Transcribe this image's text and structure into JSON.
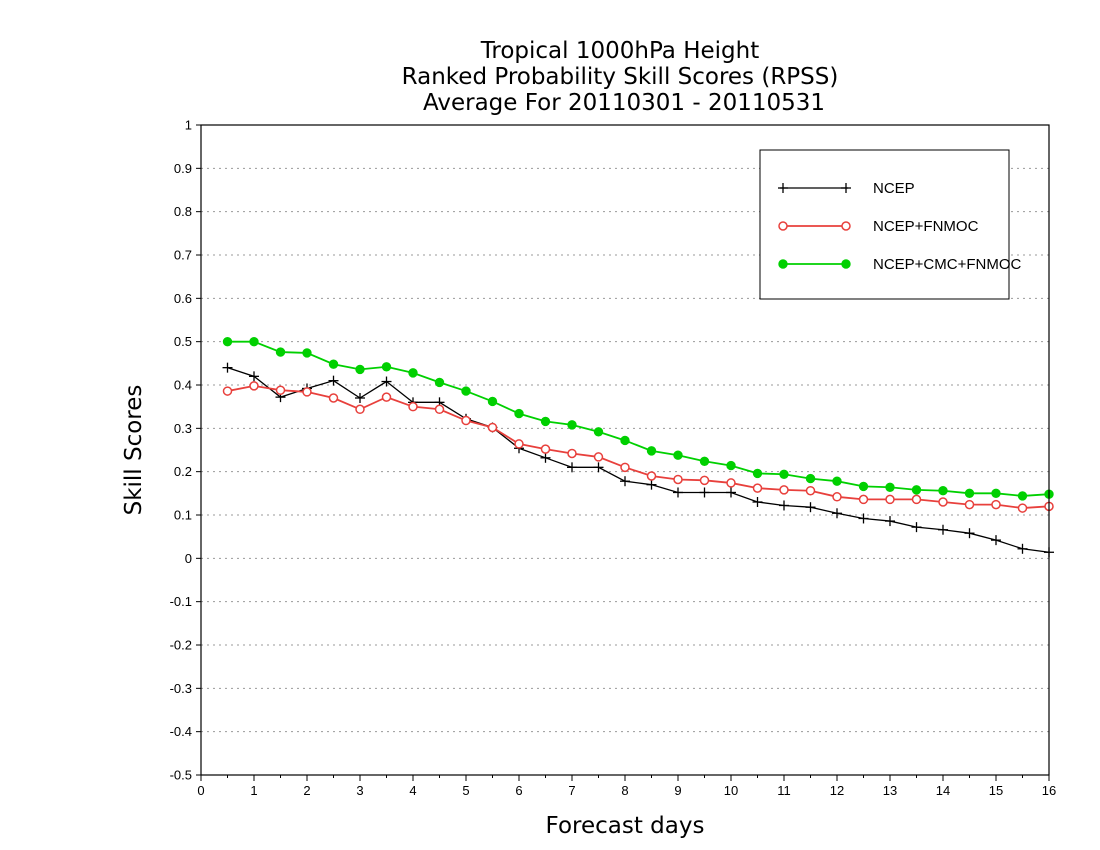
{
  "chart_data": {
    "type": "line",
    "title": [
      "Tropical 1000hPa Height",
      "Ranked Probability Skill Scores (RPSS)",
      "Average For 20110301 - 20110531"
    ],
    "xlabel": "Forecast days",
    "ylabel": "Skill Scores",
    "xlim": [
      0,
      16
    ],
    "ylim": [
      -0.5,
      1
    ],
    "xticks": [
      "0",
      "1",
      "2",
      "3",
      "4",
      "5",
      "6",
      "7",
      "8",
      "9",
      "10",
      "11",
      "12",
      "13",
      "14",
      "15",
      "16"
    ],
    "yticks": [
      "-0.5",
      "-0.4",
      "-0.3",
      "-0.2",
      "-0.1",
      "0",
      "0.1",
      "0.2",
      "0.3",
      "0.4",
      "0.5",
      "0.6",
      "0.7",
      "0.8",
      "0.9",
      "1"
    ],
    "grid": "horizontal dotted",
    "legend_position": "top-right",
    "x": [
      0.5,
      1,
      1.5,
      2,
      2.5,
      3,
      3.5,
      4,
      4.5,
      5,
      5.5,
      6,
      6.5,
      7,
      7.5,
      8,
      8.5,
      9,
      9.5,
      10,
      10.5,
      11,
      11.5,
      12,
      12.5,
      13,
      13.5,
      14,
      14.5,
      15,
      15.5,
      16
    ],
    "series": [
      {
        "name": "NCEP",
        "color": "#000000",
        "marker": "plus",
        "values": [
          0.44,
          0.42,
          0.372,
          0.392,
          0.41,
          0.37,
          0.408,
          0.36,
          0.36,
          0.322,
          0.302,
          0.254,
          0.232,
          0.21,
          0.21,
          0.178,
          0.17,
          0.152,
          0.152,
          0.152,
          0.13,
          0.122,
          0.118,
          0.104,
          0.092,
          0.086,
          0.072,
          0.066,
          0.058,
          0.042,
          0.022,
          0.014
        ]
      },
      {
        "name": "NCEP+FNMOC",
        "color": "#e8403c",
        "marker": "open-circle",
        "values": [
          0.386,
          0.398,
          0.388,
          0.384,
          0.37,
          0.344,
          0.372,
          0.35,
          0.344,
          0.318,
          0.302,
          0.264,
          0.252,
          0.242,
          0.234,
          0.21,
          0.19,
          0.182,
          0.18,
          0.174,
          0.162,
          0.158,
          0.156,
          0.142,
          0.136,
          0.136,
          0.136,
          0.13,
          0.124,
          0.124,
          0.116,
          0.12
        ]
      },
      {
        "name": "NCEP+CMC+FNMOC",
        "color": "#00d000",
        "marker": "filled-circle",
        "values": [
          0.5,
          0.5,
          0.476,
          0.474,
          0.448,
          0.436,
          0.442,
          0.428,
          0.406,
          0.386,
          0.362,
          0.334,
          0.316,
          0.308,
          0.292,
          0.272,
          0.248,
          0.238,
          0.224,
          0.214,
          0.196,
          0.194,
          0.184,
          0.178,
          0.166,
          0.164,
          0.158,
          0.156,
          0.15,
          0.15,
          0.144,
          0.148
        ]
      }
    ]
  }
}
